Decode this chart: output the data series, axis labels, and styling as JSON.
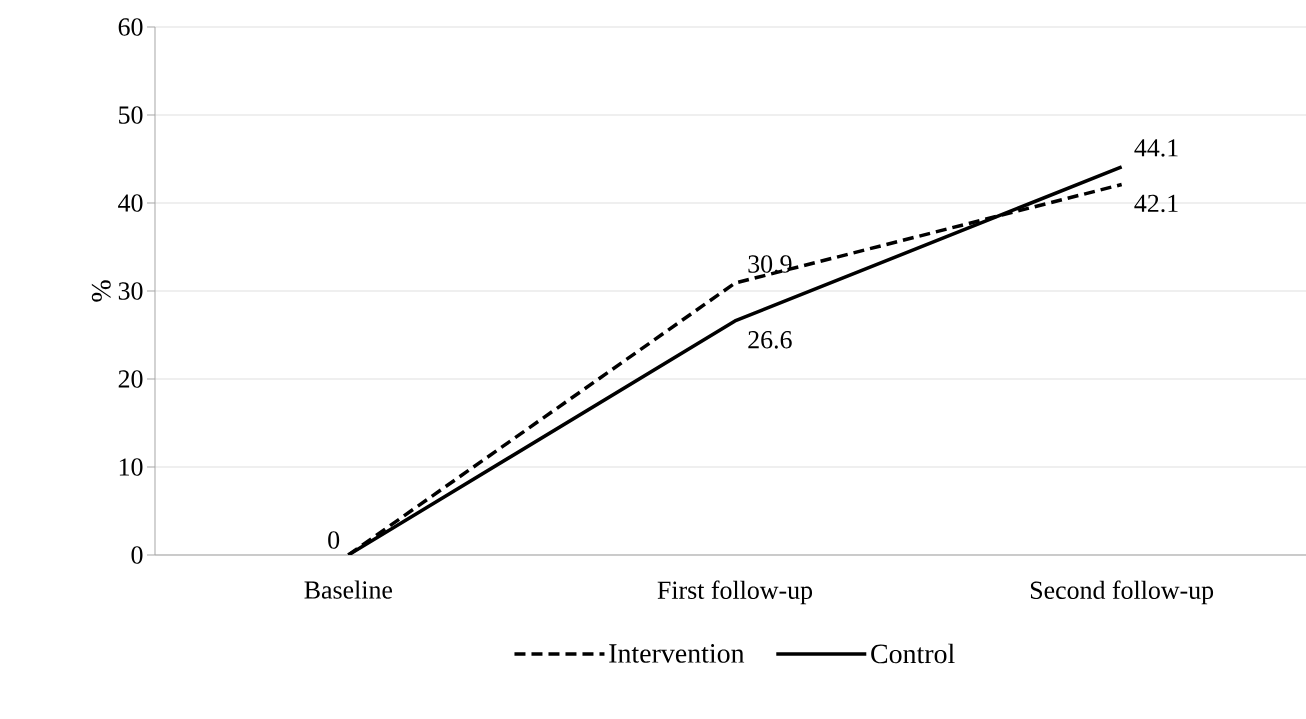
{
  "chart_data": {
    "type": "line",
    "ylabel": "%",
    "categories": [
      "Baseline",
      "First follow-up",
      "Second follow-up"
    ],
    "series": [
      {
        "name": "Intervention",
        "color": "#000000",
        "line_style": "dashed",
        "values": [
          0,
          30.9,
          42.1
        ],
        "value_labels": [
          null,
          "30.9",
          "42.1"
        ]
      },
      {
        "name": "Control",
        "color": "#000000",
        "line_style": "solid",
        "values": [
          0,
          26.6,
          44.1
        ],
        "value_labels": [
          "0",
          "26.6",
          "44.1"
        ]
      }
    ],
    "ylim": [
      0,
      60
    ],
    "yticks": [
      0,
      10,
      20,
      30,
      40,
      50,
      60
    ],
    "grid": "y",
    "legend": "bottom"
  }
}
